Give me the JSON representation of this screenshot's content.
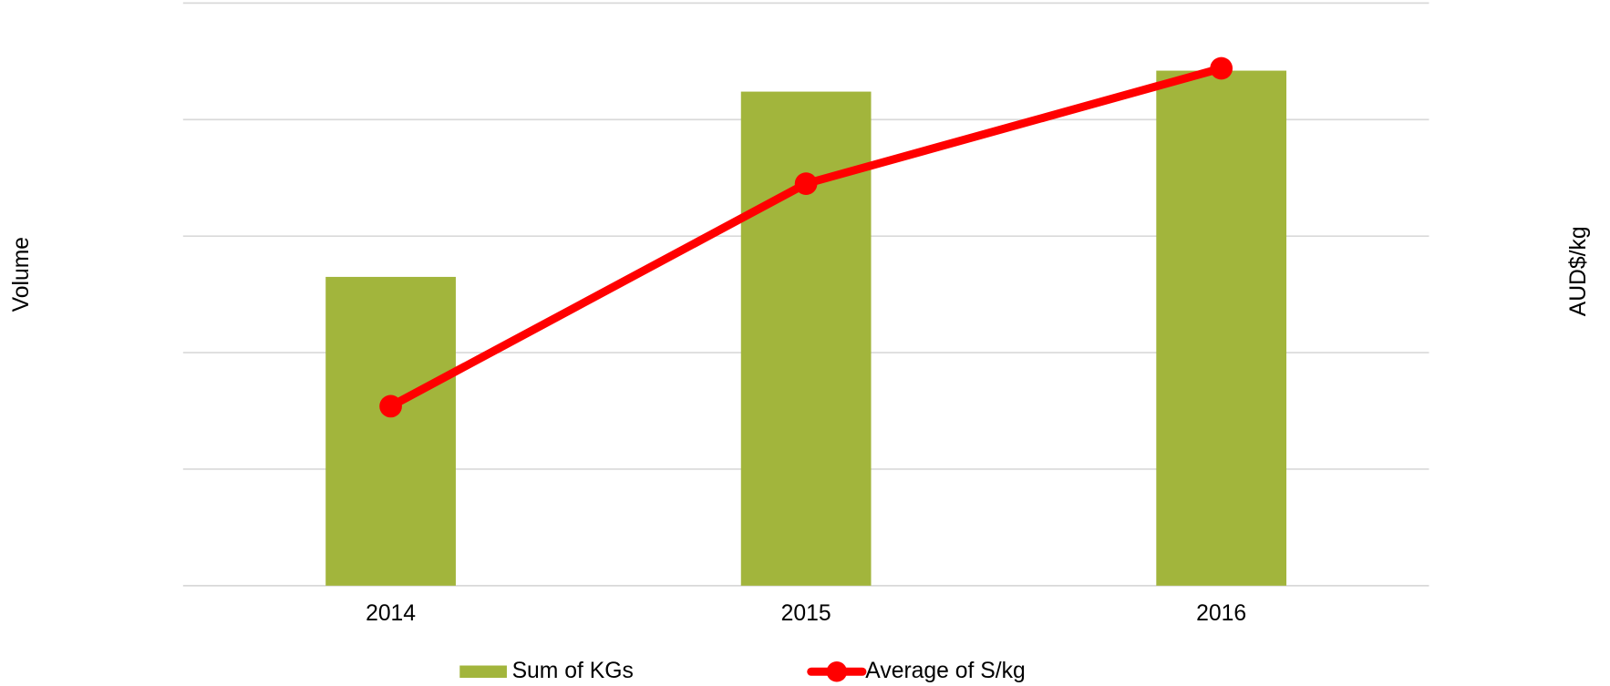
{
  "chart_data": {
    "type": "bar",
    "categories": [
      "2014",
      "2015",
      "2016"
    ],
    "series": [
      {
        "name": "Sum of KGs",
        "type": "bar",
        "color": "#a2b53c",
        "values": [
          2.65,
          4.24,
          4.42
        ]
      },
      {
        "name": "Average of S/kg",
        "type": "line",
        "axis": "y2",
        "color": "#ff0000",
        "values": [
          1.54,
          3.45,
          4.44
        ]
      }
    ],
    "ylabel": "Volume",
    "y2label": "AUD$/kg",
    "ylim": [
      0,
      5
    ],
    "yticks": [
      0,
      1,
      2,
      3,
      4,
      5
    ],
    "y2lim": [
      0,
      5
    ],
    "grid": true,
    "legend": "bottom"
  }
}
